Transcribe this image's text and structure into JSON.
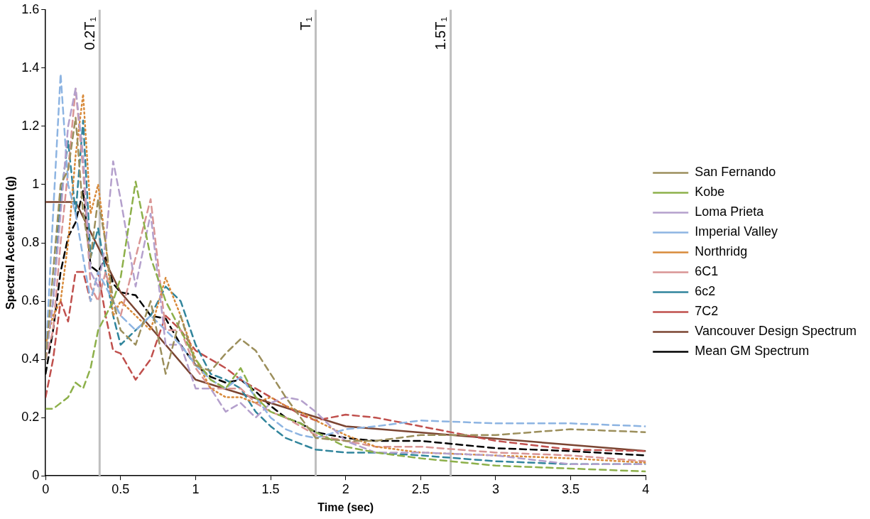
{
  "chart_data": {
    "type": "line",
    "xlabel": "Time (sec)",
    "ylabel": "Spectral Acceleration (g)",
    "x": [
      0,
      0.05,
      0.1,
      0.15,
      0.2,
      0.25,
      0.3,
      0.35,
      0.4,
      0.45,
      0.5,
      0.6,
      0.7,
      0.8,
      0.9,
      1.0,
      1.1,
      1.2,
      1.3,
      1.4,
      1.5,
      1.6,
      1.7,
      1.8,
      2.0,
      2.2,
      2.5,
      3.0,
      3.5,
      4.0
    ],
    "xlim": [
      0,
      4
    ],
    "xticks": [
      0,
      0.5,
      1,
      1.5,
      2,
      2.5,
      3,
      3.5,
      4
    ],
    "ylim": [
      0,
      1.6
    ],
    "yticks": [
      0,
      0.2,
      0.4,
      0.6,
      0.8,
      1,
      1.2,
      1.4,
      1.6
    ],
    "grid": false,
    "legend": "right",
    "marker": "none",
    "series": [
      {
        "name": "San Fernando",
        "color": "#9c8f5c",
        "line_style": "dashed",
        "values": [
          0.4,
          0.7,
          1.0,
          1.05,
          1.23,
          0.9,
          0.75,
          0.95,
          0.8,
          0.6,
          0.5,
          0.45,
          0.6,
          0.35,
          0.55,
          0.38,
          0.36,
          0.42,
          0.47,
          0.43,
          0.35,
          0.27,
          0.2,
          0.13,
          0.12,
          0.12,
          0.14,
          0.14,
          0.16,
          0.15
        ]
      },
      {
        "name": "Kobe",
        "color": "#8db04a",
        "line_style": "dashed",
        "values": [
          0.23,
          0.23,
          0.25,
          0.27,
          0.32,
          0.3,
          0.37,
          0.5,
          0.55,
          0.6,
          0.68,
          1.01,
          0.75,
          0.6,
          0.5,
          0.4,
          0.33,
          0.3,
          0.37,
          0.27,
          0.22,
          0.2,
          0.18,
          0.15,
          0.1,
          0.08,
          0.06,
          0.035,
          0.025,
          0.015
        ]
      },
      {
        "name": "Loma Prieta",
        "color": "#b4a0cc",
        "line_style": "dashed",
        "values": [
          0.4,
          0.6,
          0.9,
          1.2,
          1.33,
          1.1,
          0.7,
          0.65,
          0.8,
          1.08,
          0.95,
          0.65,
          0.9,
          0.45,
          0.45,
          0.3,
          0.3,
          0.22,
          0.25,
          0.2,
          0.25,
          0.27,
          0.26,
          0.22,
          0.12,
          0.08,
          0.08,
          0.07,
          0.04,
          0.04
        ]
      },
      {
        "name": "Imperial Valley",
        "color": "#8db4e2",
        "line_style": "dashed",
        "values": [
          0.4,
          0.9,
          1.38,
          1.0,
          0.9,
          0.75,
          0.6,
          0.7,
          0.65,
          0.6,
          0.55,
          0.5,
          0.55,
          0.5,
          0.45,
          0.38,
          0.33,
          0.3,
          0.34,
          0.27,
          0.2,
          0.16,
          0.14,
          0.13,
          0.16,
          0.17,
          0.19,
          0.18,
          0.18,
          0.17
        ]
      },
      {
        "name": "Northridg",
        "color": "#d88a3a",
        "line_style": "dotted",
        "values": [
          0.45,
          0.55,
          0.6,
          0.8,
          1.1,
          1.31,
          0.9,
          1.0,
          0.8,
          0.55,
          0.6,
          0.55,
          0.5,
          0.68,
          0.55,
          0.4,
          0.3,
          0.27,
          0.27,
          0.25,
          0.27,
          0.24,
          0.22,
          0.19,
          0.14,
          0.1,
          0.08,
          0.07,
          0.06,
          0.045
        ]
      },
      {
        "name": "6C1",
        "color": "#d99594",
        "line_style": "dashed",
        "values": [
          0.4,
          0.5,
          0.8,
          1.05,
          1.33,
          1.05,
          0.65,
          0.6,
          0.7,
          0.6,
          0.55,
          0.75,
          0.95,
          0.5,
          0.5,
          0.37,
          0.3,
          0.3,
          0.3,
          0.25,
          0.22,
          0.2,
          0.17,
          0.14,
          0.12,
          0.1,
          0.1,
          0.08,
          0.07,
          0.05
        ]
      },
      {
        "name": "6c2",
        "color": "#31859c",
        "line_style": "dashed",
        "values": [
          0.4,
          0.6,
          0.95,
          1.15,
          0.9,
          1.22,
          0.75,
          0.85,
          0.7,
          0.55,
          0.45,
          0.5,
          0.55,
          0.65,
          0.6,
          0.45,
          0.35,
          0.33,
          0.3,
          0.22,
          0.17,
          0.13,
          0.11,
          0.09,
          0.08,
          0.08,
          0.07,
          0.05,
          0.04,
          0.04
        ]
      },
      {
        "name": "7C2",
        "color": "#c0504d",
        "line_style": "dashed",
        "values": [
          0.27,
          0.4,
          0.6,
          0.53,
          0.7,
          0.7,
          0.6,
          0.7,
          0.55,
          0.43,
          0.42,
          0.33,
          0.4,
          0.55,
          0.5,
          0.43,
          0.4,
          0.37,
          0.33,
          0.3,
          0.27,
          0.24,
          0.21,
          0.19,
          0.21,
          0.2,
          0.17,
          0.12,
          0.09,
          0.085
        ]
      },
      {
        "name": "Vancouver Design Spectrum",
        "color": "#7b4532",
        "line_style": "solid",
        "x": [
          0,
          0.2,
          0.5,
          1.0,
          2.0,
          4.0
        ],
        "values": [
          0.94,
          0.94,
          0.63,
          0.33,
          0.17,
          0.085
        ]
      },
      {
        "name": "Mean GM Spectrum",
        "color": "#000000",
        "line_style": "dashed",
        "values": [
          0.35,
          0.5,
          0.7,
          0.82,
          0.87,
          0.98,
          0.72,
          0.7,
          0.75,
          0.66,
          0.63,
          0.62,
          0.55,
          0.54,
          0.45,
          0.38,
          0.34,
          0.32,
          0.33,
          0.29,
          0.24,
          0.2,
          0.18,
          0.15,
          0.13,
          0.12,
          0.12,
          0.095,
          0.085,
          0.07
        ]
      }
    ],
    "ref_lines": [
      {
        "axis": "x",
        "value": 0.36,
        "label": "0.2T₁",
        "color": "#bfbfbf"
      },
      {
        "axis": "x",
        "value": 1.8,
        "label": "T₁",
        "color": "#bfbfbf"
      },
      {
        "axis": "x",
        "value": 2.7,
        "label": "1.5T₁",
        "color": "#bfbfbf"
      }
    ]
  }
}
